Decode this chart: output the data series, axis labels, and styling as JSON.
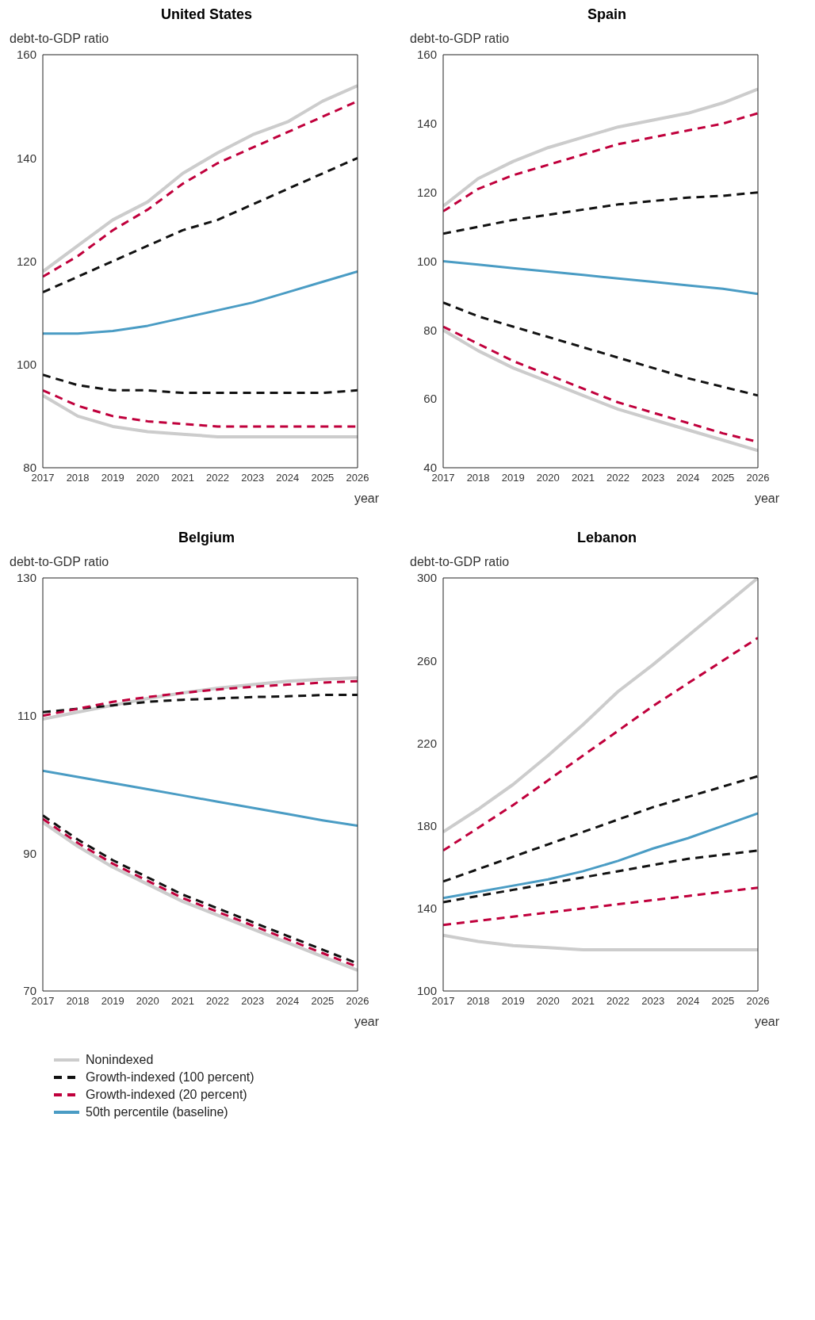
{
  "chart_data": [
    {
      "type": "line",
      "title": "United States",
      "ylabel": "debt-to-GDP ratio",
      "xlabel": "year",
      "x": [
        2017,
        2018,
        2019,
        2020,
        2021,
        2022,
        2023,
        2024,
        2025,
        2026
      ],
      "xlim": [
        2017,
        2026
      ],
      "xticks": [
        2017,
        2018,
        2019,
        2020,
        2021,
        2022,
        2023,
        2024,
        2025,
        2026
      ],
      "ylim": [
        80,
        160
      ],
      "yticks": [
        80,
        100,
        120,
        140,
        160
      ],
      "grid": false,
      "marker": "none",
      "series": [
        {
          "color": "#cccccc",
          "line_style": "solid",
          "values": [
            118,
            123,
            128,
            131.5,
            137,
            141,
            144.5,
            147,
            151,
            154
          ]
        },
        {
          "color": "#cccccc",
          "line_style": "solid",
          "values": [
            94,
            90,
            88,
            87,
            86.5,
            86,
            86,
            86,
            86,
            86
          ]
        },
        {
          "color": "#c0003c",
          "line_style": "dashed",
          "values": [
            117,
            121,
            126,
            130,
            135,
            139,
            142,
            145,
            148,
            151
          ]
        },
        {
          "color": "#c0003c",
          "line_style": "dashed",
          "values": [
            95,
            92,
            90,
            89,
            88.5,
            88,
            88,
            88,
            88,
            88
          ]
        },
        {
          "color": "#111111",
          "line_style": "dashed",
          "values": [
            114,
            117,
            120,
            123,
            126,
            128,
            131,
            134,
            137,
            140
          ]
        },
        {
          "color": "#111111",
          "line_style": "dashed",
          "values": [
            98,
            96,
            95,
            95,
            94.5,
            94.5,
            94.5,
            94.5,
            94.5,
            95
          ]
        },
        {
          "color": "#4a9cc4",
          "line_style": "solid",
          "values": [
            106,
            106,
            106.5,
            107.5,
            109,
            110.5,
            112,
            114,
            116,
            118
          ]
        }
      ]
    },
    {
      "type": "line",
      "title": "Spain",
      "ylabel": "debt-to-GDP ratio",
      "xlabel": "year",
      "x": [
        2017,
        2018,
        2019,
        2020,
        2021,
        2022,
        2023,
        2024,
        2025,
        2026
      ],
      "xlim": [
        2017,
        2026
      ],
      "xticks": [
        2017,
        2018,
        2019,
        2020,
        2021,
        2022,
        2023,
        2024,
        2025,
        2026
      ],
      "ylim": [
        40,
        160
      ],
      "yticks": [
        40,
        60,
        80,
        100,
        120,
        140,
        160
      ],
      "grid": false,
      "marker": "none",
      "series": [
        {
          "color": "#cccccc",
          "line_style": "solid",
          "values": [
            116,
            124,
            129,
            133,
            136,
            139,
            141,
            143,
            146,
            150
          ]
        },
        {
          "color": "#cccccc",
          "line_style": "solid",
          "values": [
            80,
            74,
            69,
            65,
            61,
            57,
            54,
            51,
            48,
            45
          ]
        },
        {
          "color": "#c0003c",
          "line_style": "dashed",
          "values": [
            114.5,
            121,
            125,
            128,
            131,
            134,
            136,
            138,
            140,
            143
          ]
        },
        {
          "color": "#c0003c",
          "line_style": "dashed",
          "values": [
            81,
            76,
            71,
            67,
            63,
            59,
            56,
            53,
            50,
            47.5
          ]
        },
        {
          "color": "#111111",
          "line_style": "dashed",
          "values": [
            108,
            110,
            112,
            113.5,
            115,
            116.5,
            117.5,
            118.5,
            119,
            120
          ]
        },
        {
          "color": "#111111",
          "line_style": "dashed",
          "values": [
            88,
            84,
            81,
            78,
            75,
            72,
            69,
            66,
            63.5,
            61
          ]
        },
        {
          "color": "#4a9cc4",
          "line_style": "solid",
          "values": [
            100,
            99,
            98,
            97,
            96,
            95,
            94,
            93,
            92,
            90.5
          ]
        }
      ]
    },
    {
      "type": "line",
      "title": "Belgium",
      "ylabel": "debt-to-GDP ratio",
      "xlabel": "year",
      "x": [
        2017,
        2018,
        2019,
        2020,
        2021,
        2022,
        2023,
        2024,
        2025,
        2026
      ],
      "xlim": [
        2017,
        2026
      ],
      "xticks": [
        2017,
        2018,
        2019,
        2020,
        2021,
        2022,
        2023,
        2024,
        2025,
        2026
      ],
      "ylim": [
        70,
        130
      ],
      "yticks": [
        70,
        90,
        110,
        130
      ],
      "grid": false,
      "marker": "none",
      "legend": "bottom",
      "series": [
        {
          "name": "Nonindexed",
          "color": "#cccccc",
          "line_style": "solid",
          "values": [
            109.5,
            110.5,
            111.5,
            112.5,
            113.3,
            114,
            114.5,
            115,
            115.3,
            115.5
          ]
        },
        {
          "color": "#cccccc",
          "line_style": "solid",
          "values": [
            94.5,
            91,
            88,
            85.5,
            83,
            81,
            79,
            77,
            75,
            73
          ]
        },
        {
          "name": "Growth-indexed (100 percent)",
          "color": "#111111",
          "line_style": "dashed",
          "values": [
            110.5,
            111,
            111.5,
            112,
            112.3,
            112.5,
            112.7,
            112.8,
            113,
            113
          ]
        },
        {
          "color": "#111111",
          "line_style": "dashed",
          "values": [
            95.5,
            92,
            89,
            86.5,
            84,
            82,
            80,
            78,
            76,
            74
          ]
        },
        {
          "name": "Growth-indexed (20 percent)",
          "color": "#c0003c",
          "line_style": "dashed",
          "values": [
            110,
            111,
            112,
            112.7,
            113.3,
            113.8,
            114.2,
            114.5,
            114.8,
            115
          ]
        },
        {
          "color": "#c0003c",
          "line_style": "dashed",
          "values": [
            95,
            91.5,
            88.5,
            86,
            83.5,
            81.5,
            79.5,
            77.5,
            75.5,
            73.5
          ]
        },
        {
          "name": "50th percentile (baseline)",
          "color": "#4a9cc4",
          "line_style": "solid",
          "values": [
            102,
            101.1,
            100.2,
            99.3,
            98.4,
            97.5,
            96.6,
            95.7,
            94.8,
            94
          ]
        }
      ]
    },
    {
      "type": "line",
      "title": "Lebanon",
      "ylabel": "debt-to-GDP ratio",
      "xlabel": "year",
      "x": [
        2017,
        2018,
        2019,
        2020,
        2021,
        2022,
        2023,
        2024,
        2025,
        2026
      ],
      "xlim": [
        2017,
        2026
      ],
      "xticks": [
        2017,
        2018,
        2019,
        2020,
        2021,
        2022,
        2023,
        2024,
        2025,
        2026
      ],
      "ylim": [
        100,
        300
      ],
      "yticks": [
        100,
        140,
        180,
        220,
        260,
        300
      ],
      "grid": false,
      "marker": "none",
      "series": [
        {
          "color": "#cccccc",
          "line_style": "solid",
          "values": [
            177,
            188,
            200,
            214,
            229,
            245,
            258,
            272,
            286,
            300
          ]
        },
        {
          "color": "#cccccc",
          "line_style": "solid",
          "values": [
            127,
            124,
            122,
            121,
            120,
            120,
            120,
            120,
            120,
            120
          ]
        },
        {
          "color": "#c0003c",
          "line_style": "dashed",
          "values": [
            168,
            179,
            190,
            202,
            214,
            226,
            238,
            249,
            260,
            271
          ]
        },
        {
          "color": "#c0003c",
          "line_style": "dashed",
          "values": [
            132,
            134,
            136,
            138,
            140,
            142,
            144,
            146,
            148,
            150
          ]
        },
        {
          "color": "#111111",
          "line_style": "dashed",
          "values": [
            153,
            159,
            165,
            171,
            177,
            183,
            189,
            194,
            199,
            204
          ]
        },
        {
          "color": "#111111",
          "line_style": "dashed",
          "values": [
            143,
            146,
            149,
            152,
            155,
            158,
            161,
            164,
            166,
            168
          ]
        },
        {
          "color": "#4a9cc4",
          "line_style": "solid",
          "values": [
            145,
            148,
            151,
            154,
            158,
            163,
            169,
            174,
            180,
            186
          ]
        }
      ]
    }
  ]
}
